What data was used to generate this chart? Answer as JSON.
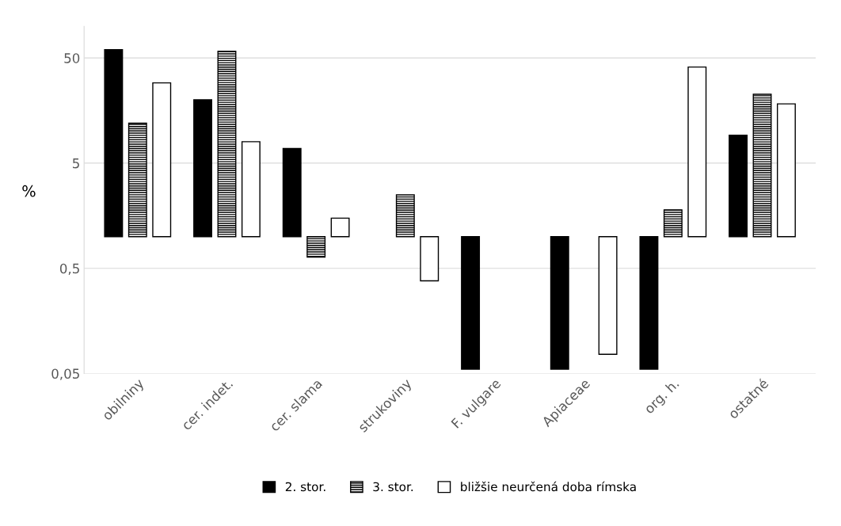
{
  "chart_data": {
    "type": "bar",
    "ylabel": "%",
    "log": true,
    "categories": [
      "obilniny",
      "cer. indet.",
      "cer. slama",
      "strukoviny",
      "F. vulgare",
      "Apiaceae",
      "org. h.",
      "ostatné"
    ],
    "series": [
      {
        "name": "2. stor.",
        "color": "#000000",
        "base": [
          1,
          1,
          1,
          null,
          1,
          1,
          1,
          1
        ],
        "values": [
          59,
          19,
          5.9,
          null,
          -0.945,
          -0.945,
          -0.945,
          8.2
        ]
      },
      {
        "name": "3. stor.",
        "color": "#000000",
        "base": [
          1,
          1,
          1,
          1,
          null,
          null,
          1,
          1
        ],
        "values": [
          11,
          57,
          -0.36,
          1.5,
          null,
          null,
          0.8,
          21.6
        ]
      },
      {
        "name": "bližšie neurčená doba rímska",
        "color": "#ffffff",
        "base": [
          1,
          1,
          1,
          1,
          null,
          1,
          1,
          1
        ],
        "values": [
          28,
          7,
          0.5,
          -0.62,
          null,
          -0.924,
          40,
          17.3
        ]
      }
    ],
    "ylim": [
      0.05,
      100
    ],
    "yticks": [
      {
        "value": 0.05,
        "label": "0,05"
      },
      {
        "value": 0.5,
        "label": "0,5"
      },
      5,
      50
    ],
    "grid": "y",
    "legend": "bottom"
  }
}
